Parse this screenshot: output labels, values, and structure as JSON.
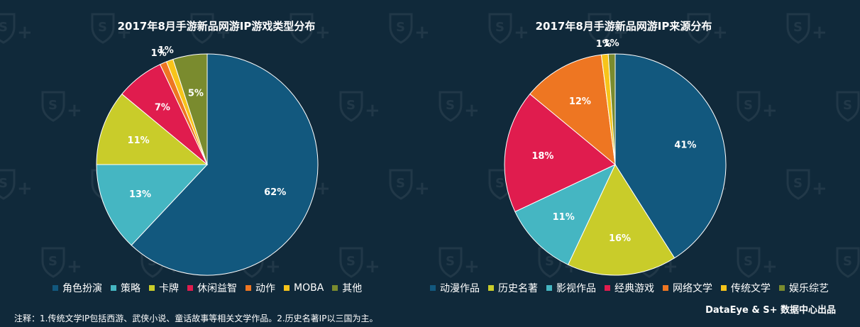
{
  "chart_data": [
    {
      "type": "pie",
      "title": "2017年8月手游新品网游IP游戏类型分布",
      "categories": [
        "角色扮演",
        "策略",
        "卡牌",
        "休闲益智",
        "动作",
        "MOBA",
        "其他"
      ],
      "values": [
        62,
        13,
        11,
        7,
        1,
        1,
        5
      ],
      "labels": [
        "62%",
        "13%",
        "11%",
        "7%",
        "1%",
        "1%",
        "5%"
      ],
      "colors": [
        "#12587e",
        "#45b6c2",
        "#c9cc2a",
        "#e01c4e",
        "#ee7622",
        "#f7c41a",
        "#7a8b2e"
      ],
      "legend_position": "bottom"
    },
    {
      "type": "pie",
      "title": "2017年8月手游新品网游IP来源分布",
      "categories": [
        "动漫作品",
        "历史名著",
        "影视作品",
        "经典游戏",
        "网络文学",
        "传统文学",
        "娱乐综艺"
      ],
      "values": [
        41,
        16,
        11,
        18,
        12,
        1,
        1
      ],
      "labels": [
        "41%",
        "16%",
        "11%",
        "18%",
        "12%",
        "1%",
        "1%"
      ],
      "colors": [
        "#12587e",
        "#c9cc2a",
        "#45b6c2",
        "#e01c4e",
        "#ee7622",
        "#f7c41a",
        "#7a8b2e"
      ],
      "legend_position": "bottom"
    }
  ],
  "footer": {
    "note": "注释：1.传统文学IP包括西游、武侠小说、童话故事等相关文学作品。2.历史名著IP以三国为主。",
    "credit": "DataEye & S+ 数据中心出品"
  },
  "watermark_icon": "shield-s-plus-icon"
}
